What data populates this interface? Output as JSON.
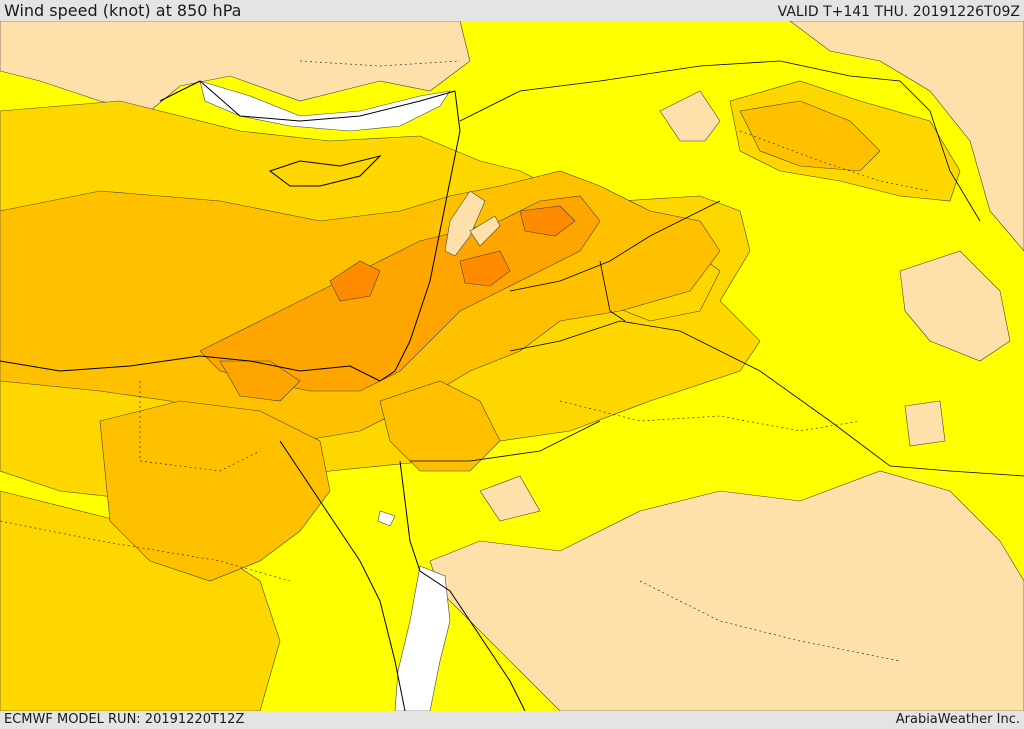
{
  "header": {
    "title": "Wind speed (knot) at 850 hPa",
    "valid": "VALID T+141 THU. 20191226T09Z"
  },
  "footer": {
    "model_run": "ECMWF MODEL RUN: 20191220T12Z",
    "credit": "ArabiaWeather Inc."
  },
  "map": {
    "region": "Eastern Mediterranean and Middle East",
    "field": "wind speed",
    "colors": {
      "light": "#fde0aa",
      "yellow": "#ffff00",
      "gold": "#ffd700",
      "amber": "#ffc000",
      "orange": "#ffa500",
      "dark_orange": "#ff8c00",
      "sea_calm": "#ffffff",
      "contour_line": "#333333",
      "border_line": "#000000"
    }
  }
}
